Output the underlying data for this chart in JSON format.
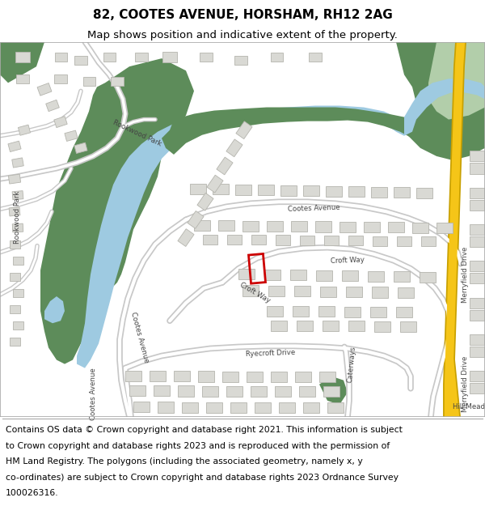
{
  "title_line1": "82, COOTES AVENUE, HORSHAM, RH12 2AG",
  "title_line2": "Map shows position and indicative extent of the property.",
  "footer_lines": [
    "Contains OS data © Crown copyright and database right 2021. This information is subject",
    "to Crown copyright and database rights 2023 and is reproduced with the permission of",
    "HM Land Registry. The polygons (including the associated geometry, namely x, y",
    "co-ordinates) are subject to Crown copyright and database rights 2023 Ordnance Survey",
    "100026316."
  ],
  "title_fontsize": 11,
  "subtitle_fontsize": 9.5,
  "footer_fontsize": 7.8,
  "fig_width": 6.0,
  "fig_height": 6.25,
  "map_bg": "#f2f1ee",
  "green_dark": "#5d8c5a",
  "green_light": "#b2ceaa",
  "blue_water": "#9ecae1",
  "road_color": "#ffffff",
  "road_outline": "#c8c8c8",
  "building_fill": "#d9d9d4",
  "building_outline": "#b5b5ae",
  "yellow_road": "#f5c518",
  "yellow_outline": "#c8a000",
  "highlight_outline": "#cc0000",
  "border_color": "#aaaaaa",
  "white": "#ffffff"
}
